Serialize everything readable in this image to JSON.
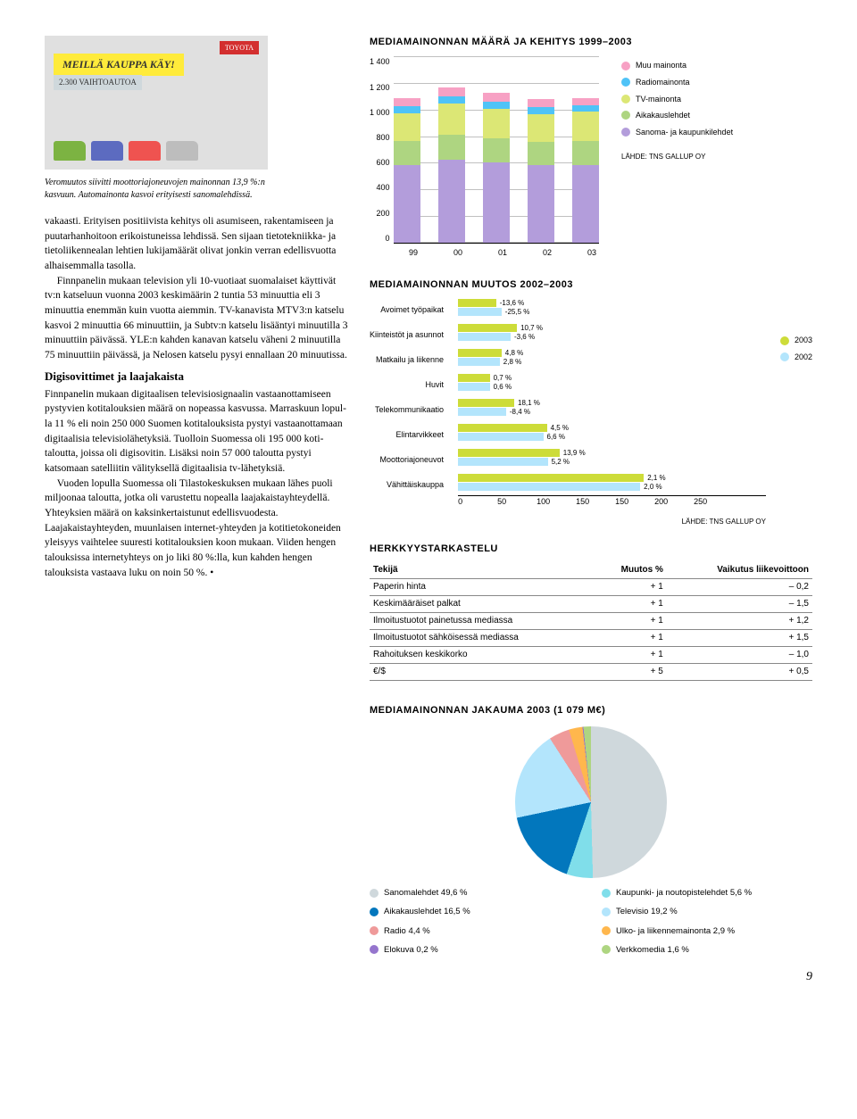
{
  "photo": {
    "banner": "MEILLÄ KAUPPA KÄY!",
    "sub": "2.300 VAIHTOAUTOA",
    "logo": "TOYOTA"
  },
  "caption": "Veromuutos siivitti moottoriajoneuvojen mainonnan 13,9 %:n kasvuun. Automainonta kasvoi erityisesti sanomalehdissä.",
  "body": {
    "p1": "vakaasti. Erityisen positiivista kehitys oli asumi­seen, rakentamiseen ja puutarhanhoitoon eri­koistuneissa lehdissä. Sen sijaan tietotekniikka- ja tietoliikennealan lehtien lukijamäärät olivat jonkin verran edellisvuotta alhaisemmalla tasolla.",
    "p2": "Finnpanelin mukaan television yli 10-vuoti­aat suomalaiset käyttivät tv:n katseluun vuonna 2003 keskimäärin 2 tuntia 53 minuuttia eli 3 minuuttia enemmän kuin vuotta aiemmin. TV-kanavista MTV3:n katselu kasvoi 2 minuuttia 66 minuuttiin, ja Subtv:n katselu lisääntyi mi­nuutilla 3 minuuttiin päivässä. YLE:n kahden kanavan katselu väheni 2 minuutilla 75 minuut­tiin päivässä, ja Nelosen katselu pysyi ennallaan 20 minuutissa.",
    "h3": "Digisovittimet ja laajakaista",
    "p3": "Finnpanelin mukaan digitaalisen televisiosignaa­lin vastaanottamiseen pystyvien kotitalouksien määrä on nopeassa kasvussa. Marraskuun lopul­la 11 % eli noin 250 000 Suomen kotitalouksista pystyi vastaanottamaan digitaalisia televisio­lähetyksiä. Tuolloin Suomessa oli 195 000 koti­taloutta, joissa oli digisovitin. Lisäksi noin 57 000 taloutta pystyi katsomaan satelliitin välityksellä digitaalisia tv-lähetyksiä.",
    "p4": "Vuoden lopulla Suomessa oli Tilastokeskuk­sen mukaan lähes puoli miljoonaa taloutta, jotka oli varustettu nopealla laajakaistayhteydellä. Yhteyksien määrä on kaksinkertaistunut edellis­vuodesta. Laajakaistayhteyden, muunlaisen internet-yhteyden ja kotitietokoneiden yleisyys vaihtelee suuresti kotitalouksien koon mukaan. Viiden hengen talouksissa internetyhteys on jo liki 80 %:lla, kun kahden hengen talouksista vastaava luku on noin 50 %. •"
  },
  "stacked": {
    "title": "MEDIAMAINONNAN MÄÄRÄ JA KEHITYS 1999–2003",
    "ylabels": [
      "0",
      "200",
      "400",
      "600",
      "800",
      "1 000",
      "1 200",
      "1 400"
    ],
    "ymax": 1400,
    "years": [
      "99",
      "00",
      "01",
      "02",
      "03"
    ],
    "legend": [
      {
        "label": "Muu mainonta",
        "color": "#f7a1c4"
      },
      {
        "label": "Radiomainonta",
        "color": "#4fc3f7"
      },
      {
        "label": "TV-mainonta",
        "color": "#dce775"
      },
      {
        "label": "Aikakauslehdet",
        "color": "#aed581"
      },
      {
        "label": "Sanoma- ja kaupunkilehdet",
        "color": "#b39ddb"
      }
    ],
    "data": [
      {
        "sanoma": 580,
        "aika": 180,
        "tv": 210,
        "radio": 50,
        "muu": 60
      },
      {
        "sanoma": 620,
        "aika": 190,
        "tv": 230,
        "radio": 55,
        "muu": 65
      },
      {
        "sanoma": 600,
        "aika": 185,
        "tv": 220,
        "radio": 53,
        "muu": 62
      },
      {
        "sanoma": 580,
        "aika": 175,
        "tv": 210,
        "radio": 50,
        "muu": 60
      },
      {
        "sanoma": 585,
        "aika": 180,
        "tv": 215,
        "radio": 48,
        "muu": 58
      }
    ],
    "source": "LÄHDE: TNS GALLUP OY"
  },
  "hbar": {
    "title": "MEDIAMAINONNAN MUUTOS 2002–2003",
    "categories": [
      "Avoimet työpaikat",
      "Kiinteistöt ja asunnot",
      "Matkailu ja liikenne",
      "Huvit",
      "Telekommunikaatio",
      "Elintarvikkeet",
      "Moottoriajoneuvot",
      "Vähittäiskauppa"
    ],
    "xticks": [
      "0",
      "50",
      "100",
      "150",
      "150",
      "200",
      "250"
    ],
    "xmax": 260,
    "color2003": "#cddc39",
    "color2002": "#b3e5fc",
    "rows": [
      {
        "v2003_label": "-13,6 %",
        "v2002_label": "-25,5 %",
        "v2003": 42,
        "v2002": 48
      },
      {
        "v2003_label": "10,7 %",
        "v2002_label": "-3,6 %",
        "v2003": 65,
        "v2002": 58
      },
      {
        "v2003_label": "4,8 %",
        "v2002_label": "2,8 %",
        "v2003": 48,
        "v2002": 46
      },
      {
        "v2003_label": "0,7 %",
        "v2002_label": "0,6 %",
        "v2003": 35,
        "v2002": 35
      },
      {
        "v2003_label": "18,1 %",
        "v2002_label": "-8,4 %",
        "v2003": 62,
        "v2002": 53
      },
      {
        "v2003_label": "4,5 %",
        "v2002_label": "6,6 %",
        "v2003": 98,
        "v2002": 94
      },
      {
        "v2003_label": "13,9 %",
        "v2002_label": "5,2 %",
        "v2003": 112,
        "v2002": 99
      },
      {
        "v2003_label": "2,1 %",
        "v2002_label": "2,0 %",
        "v2003": 205,
        "v2002": 201
      }
    ],
    "legend": [
      {
        "label": "2003",
        "color": "#cddc39"
      },
      {
        "label": "2002",
        "color": "#b3e5fc"
      }
    ],
    "source": "LÄHDE: TNS GALLUP OY"
  },
  "table": {
    "title": "HERKKYYSTARKASTELU",
    "cols": [
      "Tekijä",
      "Muutos %",
      "Vaikutus liikevoittoon"
    ],
    "rows": [
      [
        "Paperin hinta",
        "+ 1",
        "– 0,2"
      ],
      [
        "Keskimääräiset palkat",
        "+ 1",
        "– 1,5"
      ],
      [
        "Ilmoitustuotot painetussa mediassa",
        "+ 1",
        "+ 1,2"
      ],
      [
        "Ilmoitustuotot sähköisessä mediassa",
        "+ 1",
        "+ 1,5"
      ],
      [
        "Rahoituksen keskikorko",
        "+ 1",
        "– 1,0"
      ],
      [
        "€/$",
        "+ 5",
        "+ 0,5"
      ]
    ]
  },
  "pie": {
    "title": "MEDIAMAINONNAN JAKAUMA 2003 (1 079 M€)",
    "slices": [
      {
        "label": "Sanomalehdet 49,6 %",
        "value": 49.6,
        "color": "#cfd8dc"
      },
      {
        "label": "Kaupunki- ja noutopistelehdet 5,6 %",
        "value": 5.6,
        "color": "#80deea"
      },
      {
        "label": "Aikakauslehdet 16,5 %",
        "value": 16.5,
        "color": "#0277bd"
      },
      {
        "label": "Televisio 19,2 %",
        "value": 19.2,
        "color": "#b3e5fc"
      },
      {
        "label": "Radio 4,4 %",
        "value": 4.4,
        "color": "#ef9a9a"
      },
      {
        "label": "Ulko- ja liikennemainonta 2,9 %",
        "value": 2.9,
        "color": "#ffb74d"
      },
      {
        "label": "Elokuva 0,2 %",
        "value": 0.2,
        "color": "#9575cd"
      },
      {
        "label": "Verkkomedia 1,6 %",
        "value": 1.6,
        "color": "#aed581"
      }
    ]
  },
  "pageNum": "9"
}
